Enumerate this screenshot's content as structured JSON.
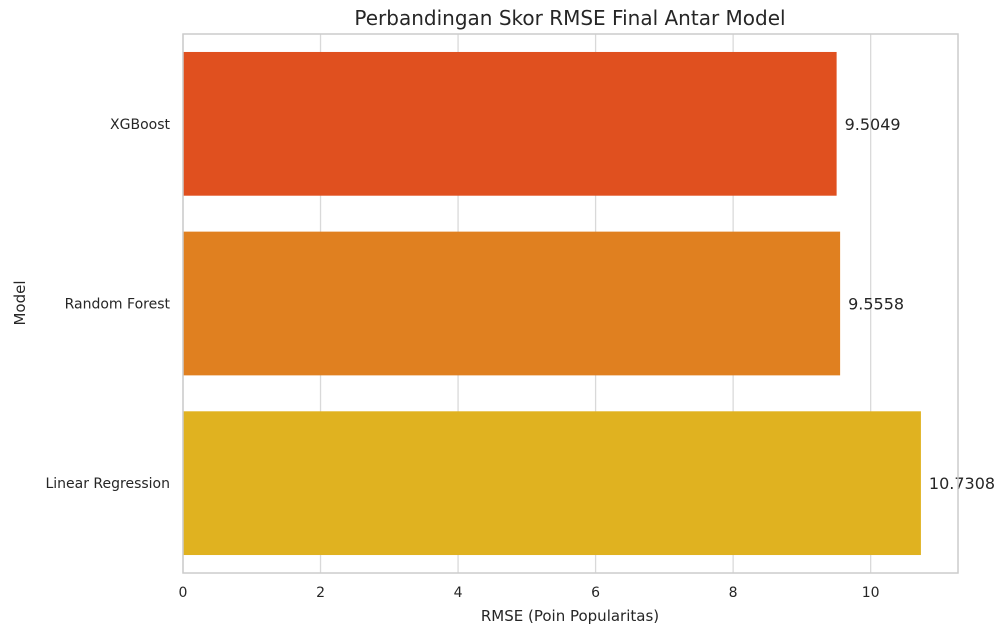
{
  "chart_data": {
    "type": "bar",
    "orientation": "horizontal",
    "title": "Perbandingan Skor RMSE Final Antar Model",
    "xlabel": "RMSE (Poin Popularitas)",
    "ylabel": "Model",
    "categories": [
      "XGBoost",
      "Random Forest",
      "Linear Regression"
    ],
    "values": [
      9.5049,
      9.5558,
      10.7308
    ],
    "value_labels": [
      "9.5049",
      "9.5558",
      "10.7308"
    ],
    "colors": [
      "#e0501f",
      "#e08020",
      "#e0b220"
    ],
    "xlim": [
      0,
      11.27
    ],
    "xticks": [
      0,
      2,
      4,
      6,
      8,
      10
    ],
    "xtick_labels": [
      "0",
      "2",
      "4",
      "6",
      "8",
      "10"
    ],
    "grid": true
  }
}
